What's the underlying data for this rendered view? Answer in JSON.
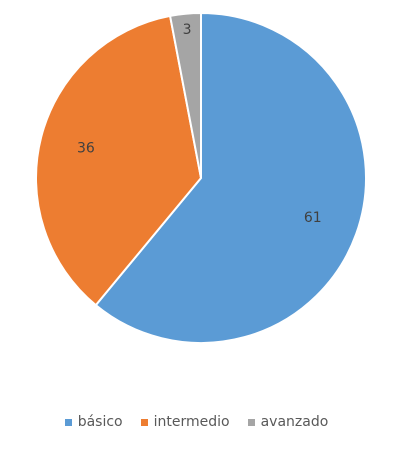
{
  "chart_data": {
    "type": "pie",
    "categories": [
      "básico",
      "intermedio",
      "avanzado"
    ],
    "values": [
      61,
      36,
      3
    ],
    "colors": [
      "#5B9BD5",
      "#ED7D31",
      "#A5A5A5"
    ],
    "data_labels": [
      "61",
      "36",
      "3"
    ],
    "legend": {
      "placement": "bottom",
      "entries": [
        "básico",
        "intermedio",
        "avanzado"
      ]
    },
    "title": ""
  }
}
